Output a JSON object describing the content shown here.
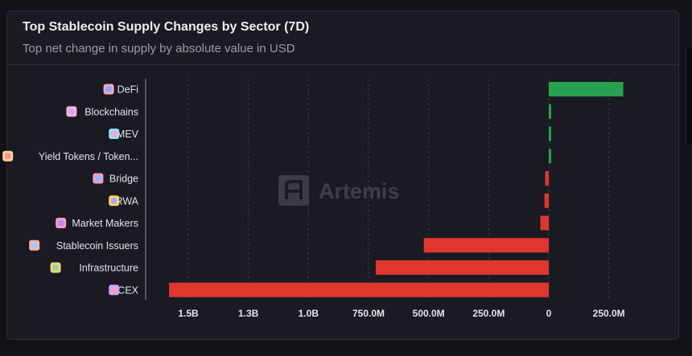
{
  "header": {
    "title": "Top Stablecoin Supply Changes by Sector (7D)",
    "subtitle": "Top net change in supply by absolute value in USD"
  },
  "watermark": {
    "text": "Artemis"
  },
  "colors": {
    "positive": "#27a14f",
    "negative": "#e0362e"
  },
  "chart_data": {
    "type": "bar",
    "orientation": "horizontal",
    "title": "Top Stablecoin Supply Changes by Sector (7D)",
    "subtitle": "Top net change in supply by absolute value in USD",
    "categories": [
      "DeFi",
      "Blockchains",
      "MEV",
      "Yield Tokens / Token...",
      "Bridge",
      "RWA",
      "Market Makers",
      "Stablecoin Issuers",
      "Infrastructure",
      "CEX"
    ],
    "icons": [
      "defi-icon",
      "blockchains-icon",
      "mev-icon",
      "yield-tokens-icon",
      "bridge-icon",
      "rwa-icon",
      "market-makers-icon",
      "stablecoin-issuers-icon",
      "infrastructure-icon",
      "cex-icon"
    ],
    "values": [
      310000000,
      10000000,
      10000000,
      10000000,
      -15000000,
      -18000000,
      -35000000,
      -520000000,
      -720000000,
      -1580000000
    ],
    "xlim": [
      -1580000000,
      330000000
    ],
    "x_ticks": [
      {
        "value": -1500000000,
        "label": "1.5B"
      },
      {
        "value": -1250000000,
        "label": "1.3B"
      },
      {
        "value": -1000000000,
        "label": "1.0B"
      },
      {
        "value": -750000000,
        "label": "750.0M"
      },
      {
        "value": -500000000,
        "label": "500.0M"
      },
      {
        "value": -250000000,
        "label": "250.0M"
      },
      {
        "value": 0,
        "label": "0"
      },
      {
        "value": 250000000,
        "label": "250.0M"
      }
    ],
    "grid": "vertical-dashed",
    "xlabel": "",
    "ylabel": ""
  }
}
